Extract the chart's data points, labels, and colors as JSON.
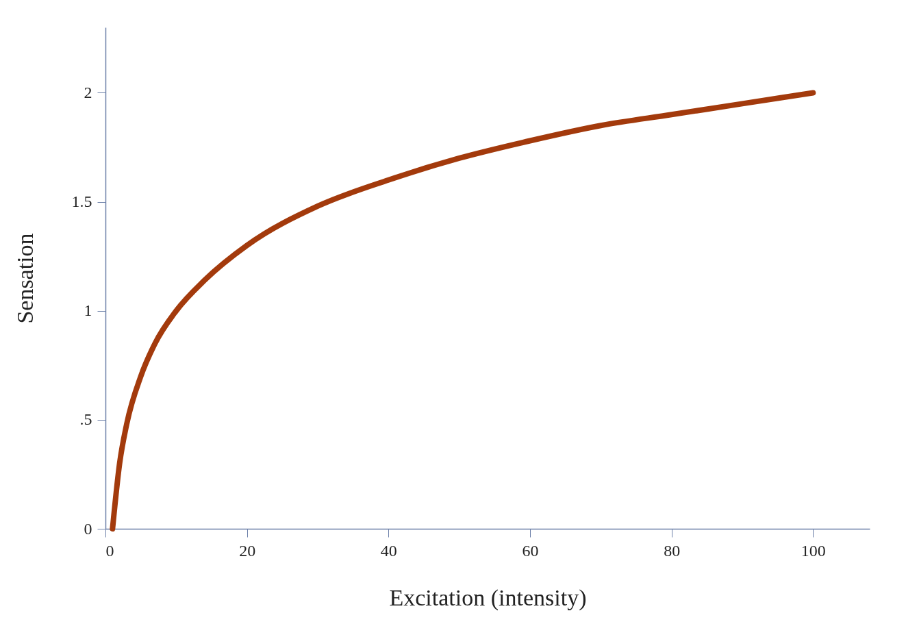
{
  "chart_data": {
    "type": "line",
    "xlabel": "Excitation (intensity)",
    "ylabel": "Sensation",
    "x": [
      1,
      2,
      3,
      5,
      7,
      10,
      14,
      20,
      30,
      40,
      50,
      60,
      70,
      80,
      90,
      100
    ],
    "series": [
      {
        "color": "#a33a0c",
        "values": [
          0,
          0.3,
          0.48,
          0.7,
          0.85,
          1.0,
          1.14,
          1.3,
          1.48,
          1.6,
          1.7,
          1.78,
          1.85,
          1.9,
          1.95,
          2.0
        ]
      }
    ],
    "xlim": [
      0,
      108
    ],
    "ylim": [
      0,
      2.3
    ],
    "xticks": [
      0,
      20,
      40,
      60,
      80,
      100
    ],
    "yticks": [
      0,
      {
        "value": 0.5,
        "label": ".5"
      },
      1,
      1.5,
      2
    ],
    "grid": false,
    "line_style": "solid"
  }
}
